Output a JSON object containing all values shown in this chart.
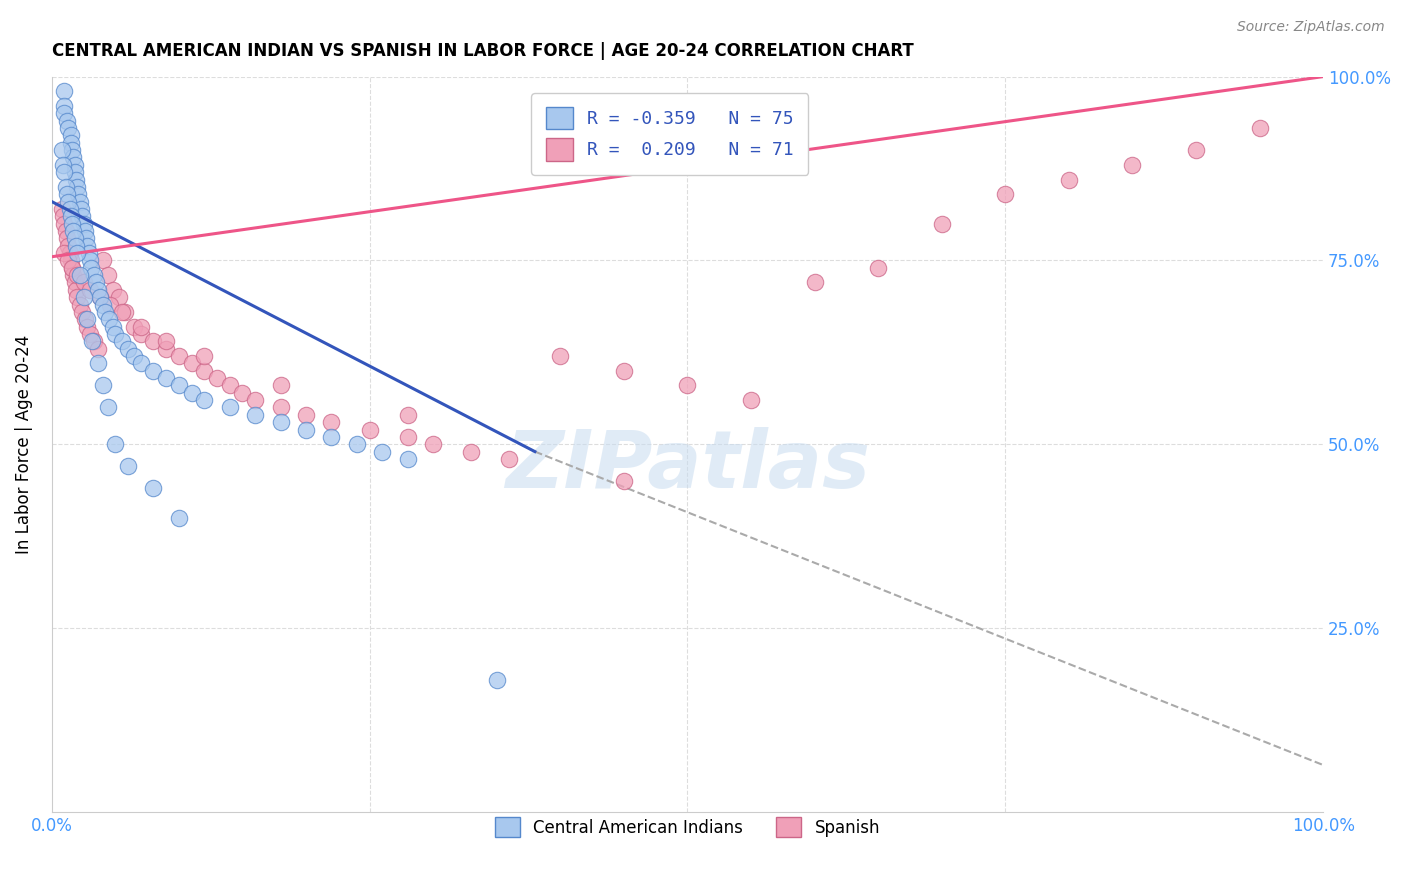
{
  "title": "CENTRAL AMERICAN INDIAN VS SPANISH IN LABOR FORCE | AGE 20-24 CORRELATION CHART",
  "source": "Source: ZipAtlas.com",
  "ylabel": "In Labor Force | Age 20-24",
  "xlim": [
    0,
    1
  ],
  "ylim": [
    0,
    1
  ],
  "legend_R1": "-0.359",
  "legend_N1": "75",
  "legend_R2": "0.209",
  "legend_N2": "71",
  "blue_fill": "#A8C8EE",
  "blue_edge": "#5588CC",
  "pink_fill": "#F0A0B8",
  "pink_edge": "#CC6688",
  "blue_line_color": "#3355BB",
  "pink_line_color": "#EE5588",
  "watermark_color": "#C8DCF0",
  "blue_scatter_x": [
    0.01,
    0.01,
    0.01,
    0.012,
    0.013,
    0.015,
    0.015,
    0.016,
    0.017,
    0.018,
    0.018,
    0.019,
    0.02,
    0.021,
    0.022,
    0.023,
    0.024,
    0.025,
    0.026,
    0.027,
    0.028,
    0.029,
    0.03,
    0.031,
    0.033,
    0.035,
    0.036,
    0.038,
    0.04,
    0.042,
    0.045,
    0.048,
    0.05,
    0.055,
    0.06,
    0.065,
    0.07,
    0.08,
    0.09,
    0.1,
    0.11,
    0.12,
    0.14,
    0.16,
    0.18,
    0.2,
    0.22,
    0.24,
    0.26,
    0.28,
    0.008,
    0.009,
    0.01,
    0.011,
    0.012,
    0.013,
    0.014,
    0.015,
    0.016,
    0.017,
    0.018,
    0.019,
    0.02,
    0.022,
    0.025,
    0.028,
    0.032,
    0.036,
    0.04,
    0.044,
    0.05,
    0.06,
    0.08,
    0.1,
    0.35
  ],
  "blue_scatter_y": [
    0.98,
    0.96,
    0.95,
    0.94,
    0.93,
    0.92,
    0.91,
    0.9,
    0.89,
    0.88,
    0.87,
    0.86,
    0.85,
    0.84,
    0.83,
    0.82,
    0.81,
    0.8,
    0.79,
    0.78,
    0.77,
    0.76,
    0.75,
    0.74,
    0.73,
    0.72,
    0.71,
    0.7,
    0.69,
    0.68,
    0.67,
    0.66,
    0.65,
    0.64,
    0.63,
    0.62,
    0.61,
    0.6,
    0.59,
    0.58,
    0.57,
    0.56,
    0.55,
    0.54,
    0.53,
    0.52,
    0.51,
    0.5,
    0.49,
    0.48,
    0.9,
    0.88,
    0.87,
    0.85,
    0.84,
    0.83,
    0.82,
    0.81,
    0.8,
    0.79,
    0.78,
    0.77,
    0.76,
    0.73,
    0.7,
    0.67,
    0.64,
    0.61,
    0.58,
    0.55,
    0.5,
    0.47,
    0.44,
    0.4,
    0.18
  ],
  "pink_scatter_x": [
    0.008,
    0.009,
    0.01,
    0.011,
    0.012,
    0.013,
    0.014,
    0.015,
    0.016,
    0.017,
    0.018,
    0.019,
    0.02,
    0.022,
    0.024,
    0.026,
    0.028,
    0.03,
    0.033,
    0.036,
    0.04,
    0.044,
    0.048,
    0.053,
    0.058,
    0.065,
    0.07,
    0.08,
    0.09,
    0.1,
    0.11,
    0.12,
    0.13,
    0.14,
    0.15,
    0.16,
    0.18,
    0.2,
    0.22,
    0.25,
    0.28,
    0.3,
    0.33,
    0.36,
    0.4,
    0.45,
    0.5,
    0.55,
    0.6,
    0.65,
    0.7,
    0.75,
    0.8,
    0.85,
    0.9,
    0.95,
    0.01,
    0.013,
    0.016,
    0.02,
    0.025,
    0.03,
    0.038,
    0.046,
    0.055,
    0.07,
    0.09,
    0.12,
    0.18,
    0.28,
    0.45
  ],
  "pink_scatter_y": [
    0.82,
    0.81,
    0.8,
    0.79,
    0.78,
    0.77,
    0.76,
    0.75,
    0.74,
    0.73,
    0.72,
    0.71,
    0.7,
    0.69,
    0.68,
    0.67,
    0.66,
    0.65,
    0.64,
    0.63,
    0.75,
    0.73,
    0.71,
    0.7,
    0.68,
    0.66,
    0.65,
    0.64,
    0.63,
    0.62,
    0.61,
    0.6,
    0.59,
    0.58,
    0.57,
    0.56,
    0.55,
    0.54,
    0.53,
    0.52,
    0.51,
    0.5,
    0.49,
    0.48,
    0.62,
    0.6,
    0.58,
    0.56,
    0.72,
    0.74,
    0.8,
    0.84,
    0.86,
    0.88,
    0.9,
    0.93,
    0.76,
    0.75,
    0.74,
    0.73,
    0.72,
    0.71,
    0.7,
    0.69,
    0.68,
    0.66,
    0.64,
    0.62,
    0.58,
    0.54,
    0.45
  ],
  "blue_line_x": [
    0.0,
    0.38
  ],
  "blue_line_y": [
    0.83,
    0.49
  ],
  "pink_line_x": [
    0.0,
    1.0
  ],
  "pink_line_y": [
    0.755,
    1.0
  ],
  "dashed_line_x": [
    0.38,
    1.02
  ],
  "dashed_line_y": [
    0.49,
    0.05
  ],
  "grid_color": "#DDDDDD",
  "tick_color": "#4499FF"
}
